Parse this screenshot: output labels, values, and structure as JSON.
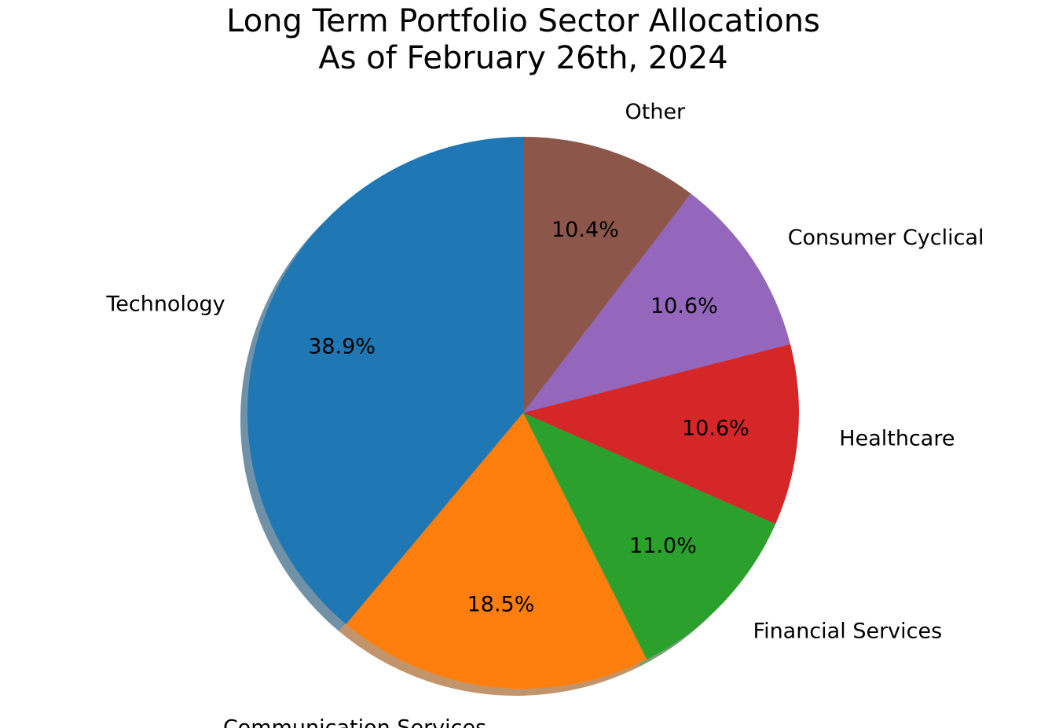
{
  "chart_data": {
    "type": "pie",
    "title": "Long Term Portfolio Sector Allocations",
    "subtitle": "As of February 26th, 2024",
    "start_angle_deg": 90,
    "direction": "counterclockwise",
    "shadow": true,
    "slices": [
      {
        "label": "Technology",
        "value": 38.9,
        "pct_label": "38.9%",
        "color": "#1f77b4"
      },
      {
        "label": "Communication Services",
        "value": 18.5,
        "pct_label": "18.5%",
        "color": "#ff7f0e"
      },
      {
        "label": "Financial Services",
        "value": 11.0,
        "pct_label": "11.0%",
        "color": "#2ca02c"
      },
      {
        "label": "Healthcare",
        "value": 10.6,
        "pct_label": "10.6%",
        "color": "#d62728"
      },
      {
        "label": "Consumer Cyclical",
        "value": 10.6,
        "pct_label": "10.6%",
        "color": "#9467bd"
      },
      {
        "label": "Other",
        "value": 10.4,
        "pct_label": "10.4%",
        "color": "#8c564b"
      }
    ]
  }
}
